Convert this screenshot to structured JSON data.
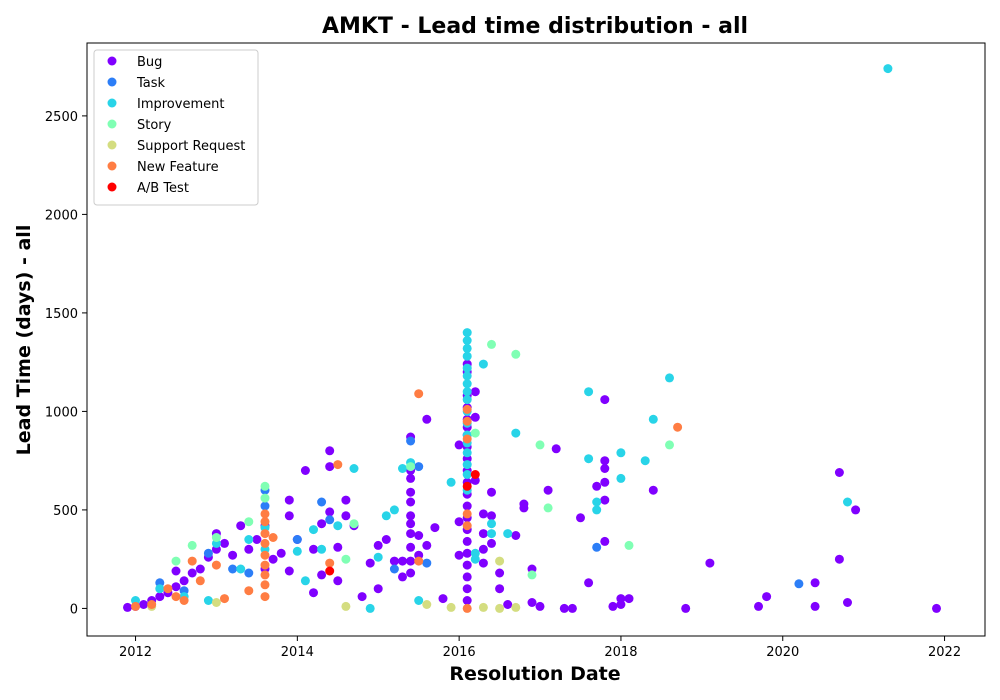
{
  "chart_data": {
    "type": "scatter",
    "title": "AMKT - Lead time distribution - all",
    "xlabel": "Resolution Date",
    "ylabel": "Lead Time (days) - all",
    "xlim": [
      2011.4,
      2022.5
    ],
    "ylim": [
      -140,
      2870
    ],
    "xticks": [
      2012,
      2014,
      2016,
      2018,
      2020,
      2022
    ],
    "yticks": [
      0,
      500,
      1000,
      1500,
      2000,
      2500
    ],
    "grid": false,
    "legend_position": "top-left",
    "series": [
      {
        "name": "Bug",
        "color": "#8000ff",
        "points": [
          [
            2011.9,
            5
          ],
          [
            2012.0,
            10
          ],
          [
            2012.1,
            20
          ],
          [
            2012.2,
            40
          ],
          [
            2012.3,
            60
          ],
          [
            2012.4,
            80
          ],
          [
            2012.5,
            110
          ],
          [
            2012.5,
            190
          ],
          [
            2012.6,
            140
          ],
          [
            2012.7,
            180
          ],
          [
            2012.8,
            200
          ],
          [
            2012.9,
            260
          ],
          [
            2013.0,
            300
          ],
          [
            2013.0,
            380
          ],
          [
            2013.1,
            330
          ],
          [
            2013.2,
            270
          ],
          [
            2013.3,
            420
          ],
          [
            2013.4,
            300
          ],
          [
            2013.5,
            350
          ],
          [
            2013.6,
            420
          ],
          [
            2013.6,
            200
          ],
          [
            2013.7,
            250
          ],
          [
            2013.8,
            280
          ],
          [
            2013.9,
            550
          ],
          [
            2013.9,
            470
          ],
          [
            2013.9,
            190
          ],
          [
            2014.0,
            350
          ],
          [
            2014.1,
            700
          ],
          [
            2014.2,
            300
          ],
          [
            2014.2,
            80
          ],
          [
            2014.3,
            430
          ],
          [
            2014.3,
            170
          ],
          [
            2014.4,
            490
          ],
          [
            2014.4,
            800
          ],
          [
            2014.4,
            720
          ],
          [
            2014.5,
            310
          ],
          [
            2014.5,
            140
          ],
          [
            2014.6,
            470
          ],
          [
            2014.6,
            550
          ],
          [
            2014.7,
            420
          ],
          [
            2014.8,
            60
          ],
          [
            2014.9,
            230
          ],
          [
            2015.0,
            320
          ],
          [
            2015.0,
            100
          ],
          [
            2015.1,
            350
          ],
          [
            2015.2,
            240
          ],
          [
            2015.3,
            160
          ],
          [
            2015.3,
            240
          ],
          [
            2015.4,
            870
          ],
          [
            2015.4,
            700
          ],
          [
            2015.4,
            660
          ],
          [
            2015.4,
            590
          ],
          [
            2015.4,
            540
          ],
          [
            2015.4,
            470
          ],
          [
            2015.4,
            430
          ],
          [
            2015.4,
            380
          ],
          [
            2015.4,
            310
          ],
          [
            2015.4,
            240
          ],
          [
            2015.4,
            180
          ],
          [
            2015.5,
            370
          ],
          [
            2015.5,
            270
          ],
          [
            2015.6,
            320
          ],
          [
            2015.6,
            960
          ],
          [
            2015.7,
            410
          ],
          [
            2015.8,
            50
          ],
          [
            2016.0,
            270
          ],
          [
            2016.0,
            440
          ],
          [
            2016.0,
            830
          ],
          [
            2016.1,
            1240
          ],
          [
            2016.1,
            1200
          ],
          [
            2016.1,
            1080
          ],
          [
            2016.1,
            1020
          ],
          [
            2016.1,
            960
          ],
          [
            2016.1,
            920
          ],
          [
            2016.1,
            880
          ],
          [
            2016.1,
            820
          ],
          [
            2016.1,
            760
          ],
          [
            2016.1,
            700
          ],
          [
            2016.1,
            640
          ],
          [
            2016.1,
            580
          ],
          [
            2016.1,
            520
          ],
          [
            2016.1,
            460
          ],
          [
            2016.1,
            400
          ],
          [
            2016.1,
            340
          ],
          [
            2016.1,
            280
          ],
          [
            2016.1,
            220
          ],
          [
            2016.1,
            160
          ],
          [
            2016.1,
            100
          ],
          [
            2016.1,
            40
          ],
          [
            2016.2,
            650
          ],
          [
            2016.2,
            1100
          ],
          [
            2016.2,
            970
          ],
          [
            2016.3,
            480
          ],
          [
            2016.3,
            380
          ],
          [
            2016.3,
            300
          ],
          [
            2016.3,
            230
          ],
          [
            2016.4,
            590
          ],
          [
            2016.4,
            470
          ],
          [
            2016.4,
            330
          ],
          [
            2016.5,
            180
          ],
          [
            2016.5,
            100
          ],
          [
            2016.6,
            20
          ],
          [
            2016.7,
            370
          ],
          [
            2016.8,
            510
          ],
          [
            2016.8,
            530
          ],
          [
            2016.9,
            200
          ],
          [
            2016.9,
            30
          ],
          [
            2017.0,
            10
          ],
          [
            2017.1,
            600
          ],
          [
            2017.2,
            810
          ],
          [
            2017.3,
            0
          ],
          [
            2017.4,
            0
          ],
          [
            2017.5,
            460
          ],
          [
            2017.6,
            130
          ],
          [
            2017.7,
            620
          ],
          [
            2017.8,
            1060
          ],
          [
            2017.8,
            750
          ],
          [
            2017.8,
            710
          ],
          [
            2017.8,
            640
          ],
          [
            2017.8,
            550
          ],
          [
            2017.8,
            340
          ],
          [
            2017.9,
            10
          ],
          [
            2018.0,
            20
          ],
          [
            2018.0,
            50
          ],
          [
            2018.1,
            50
          ],
          [
            2018.4,
            600
          ],
          [
            2018.8,
            0
          ],
          [
            2019.1,
            230
          ],
          [
            2019.7,
            10
          ],
          [
            2019.8,
            60
          ],
          [
            2020.4,
            130
          ],
          [
            2020.4,
            10
          ],
          [
            2020.7,
            690
          ],
          [
            2020.7,
            250
          ],
          [
            2020.8,
            30
          ],
          [
            2020.9,
            500
          ],
          [
            2021.9,
            0
          ]
        ]
      },
      {
        "name": "Task",
        "color": "#2c7ef7",
        "points": [
          [
            2012.3,
            130
          ],
          [
            2012.6,
            90
          ],
          [
            2012.9,
            280
          ],
          [
            2013.2,
            200
          ],
          [
            2013.4,
            180
          ],
          [
            2013.6,
            600
          ],
          [
            2013.6,
            520
          ],
          [
            2014.0,
            350
          ],
          [
            2014.3,
            540
          ],
          [
            2014.4,
            450
          ],
          [
            2015.2,
            200
          ],
          [
            2015.4,
            850
          ],
          [
            2015.5,
            720
          ],
          [
            2015.6,
            230
          ],
          [
            2017.7,
            310
          ],
          [
            2020.2,
            125
          ]
        ]
      },
      {
        "name": "Improvement",
        "color": "#28d4e8",
        "points": [
          [
            2012.0,
            40
          ],
          [
            2012.3,
            100
          ],
          [
            2012.6,
            60
          ],
          [
            2012.9,
            40
          ],
          [
            2013.0,
            330
          ],
          [
            2013.3,
            200
          ],
          [
            2013.4,
            350
          ],
          [
            2013.6,
            300
          ],
          [
            2013.6,
            410
          ],
          [
            2014.0,
            290
          ],
          [
            2014.1,
            140
          ],
          [
            2014.2,
            400
          ],
          [
            2014.3,
            300
          ],
          [
            2014.5,
            420
          ],
          [
            2014.7,
            710
          ],
          [
            2014.9,
            0
          ],
          [
            2015.0,
            260
          ],
          [
            2015.1,
            470
          ],
          [
            2015.2,
            500
          ],
          [
            2015.3,
            710
          ],
          [
            2015.4,
            740
          ],
          [
            2015.5,
            40
          ],
          [
            2015.9,
            640
          ],
          [
            2016.1,
            1400
          ],
          [
            2016.1,
            1360
          ],
          [
            2016.1,
            1320
          ],
          [
            2016.1,
            1280
          ],
          [
            2016.1,
            1220
          ],
          [
            2016.1,
            1180
          ],
          [
            2016.1,
            1140
          ],
          [
            2016.1,
            1100
          ],
          [
            2016.1,
            1060
          ],
          [
            2016.1,
            1000
          ],
          [
            2016.1,
            940
          ],
          [
            2016.1,
            880
          ],
          [
            2016.1,
            840
          ],
          [
            2016.1,
            790
          ],
          [
            2016.1,
            730
          ],
          [
            2016.1,
            680
          ],
          [
            2016.1,
            600
          ],
          [
            2016.2,
            280
          ],
          [
            2016.2,
            250
          ],
          [
            2016.3,
            1240
          ],
          [
            2016.4,
            430
          ],
          [
            2016.4,
            380
          ],
          [
            2016.6,
            380
          ],
          [
            2016.7,
            890
          ],
          [
            2017.6,
            760
          ],
          [
            2017.6,
            1100
          ],
          [
            2017.7,
            500
          ],
          [
            2017.7,
            540
          ],
          [
            2018.0,
            660
          ],
          [
            2018.0,
            790
          ],
          [
            2018.3,
            750
          ],
          [
            2018.4,
            960
          ],
          [
            2018.6,
            1170
          ],
          [
            2021.3,
            2740
          ],
          [
            2020.8,
            540
          ]
        ]
      },
      {
        "name": "Story",
        "color": "#80ffb4",
        "points": [
          [
            2012.5,
            240
          ],
          [
            2012.7,
            320
          ],
          [
            2013.0,
            360
          ],
          [
            2013.4,
            440
          ],
          [
            2013.6,
            620
          ],
          [
            2013.6,
            560
          ],
          [
            2014.7,
            430
          ],
          [
            2014.6,
            250
          ],
          [
            2015.4,
            720
          ],
          [
            2016.2,
            890
          ],
          [
            2016.4,
            1340
          ],
          [
            2016.7,
            1290
          ],
          [
            2016.9,
            170
          ],
          [
            2017.0,
            830
          ],
          [
            2017.1,
            510
          ],
          [
            2018.1,
            320
          ],
          [
            2018.6,
            830
          ]
        ]
      },
      {
        "name": "Support Request",
        "color": "#d4dd80",
        "points": [
          [
            2012.2,
            10
          ],
          [
            2013.0,
            30
          ],
          [
            2014.6,
            10
          ],
          [
            2015.6,
            20
          ],
          [
            2015.9,
            5
          ],
          [
            2016.3,
            5
          ],
          [
            2016.5,
            240
          ],
          [
            2016.5,
            0
          ],
          [
            2016.7,
            5
          ]
        ]
      },
      {
        "name": "New Feature",
        "color": "#ff7d43",
        "points": [
          [
            2012.0,
            10
          ],
          [
            2012.2,
            20
          ],
          [
            2012.4,
            100
          ],
          [
            2012.5,
            60
          ],
          [
            2012.6,
            40
          ],
          [
            2012.7,
            240
          ],
          [
            2012.8,
            140
          ],
          [
            2013.0,
            220
          ],
          [
            2013.1,
            50
          ],
          [
            2013.4,
            90
          ],
          [
            2013.6,
            480
          ],
          [
            2013.6,
            440
          ],
          [
            2013.6,
            380
          ],
          [
            2013.6,
            330
          ],
          [
            2013.6,
            270
          ],
          [
            2013.6,
            220
          ],
          [
            2013.6,
            170
          ],
          [
            2013.6,
            120
          ],
          [
            2013.6,
            60
          ],
          [
            2013.7,
            360
          ],
          [
            2014.4,
            230
          ],
          [
            2014.5,
            730
          ],
          [
            2015.5,
            240
          ],
          [
            2015.5,
            1090
          ],
          [
            2016.1,
            1010
          ],
          [
            2016.1,
            950
          ],
          [
            2016.1,
            860
          ],
          [
            2016.1,
            480
          ],
          [
            2016.1,
            420
          ],
          [
            2016.1,
            0
          ],
          [
            2018.7,
            920
          ]
        ]
      },
      {
        "name": "A/B Test",
        "color": "#ff0000",
        "points": [
          [
            2014.4,
            190
          ],
          [
            2016.1,
            620
          ],
          [
            2016.2,
            680
          ]
        ]
      }
    ]
  }
}
